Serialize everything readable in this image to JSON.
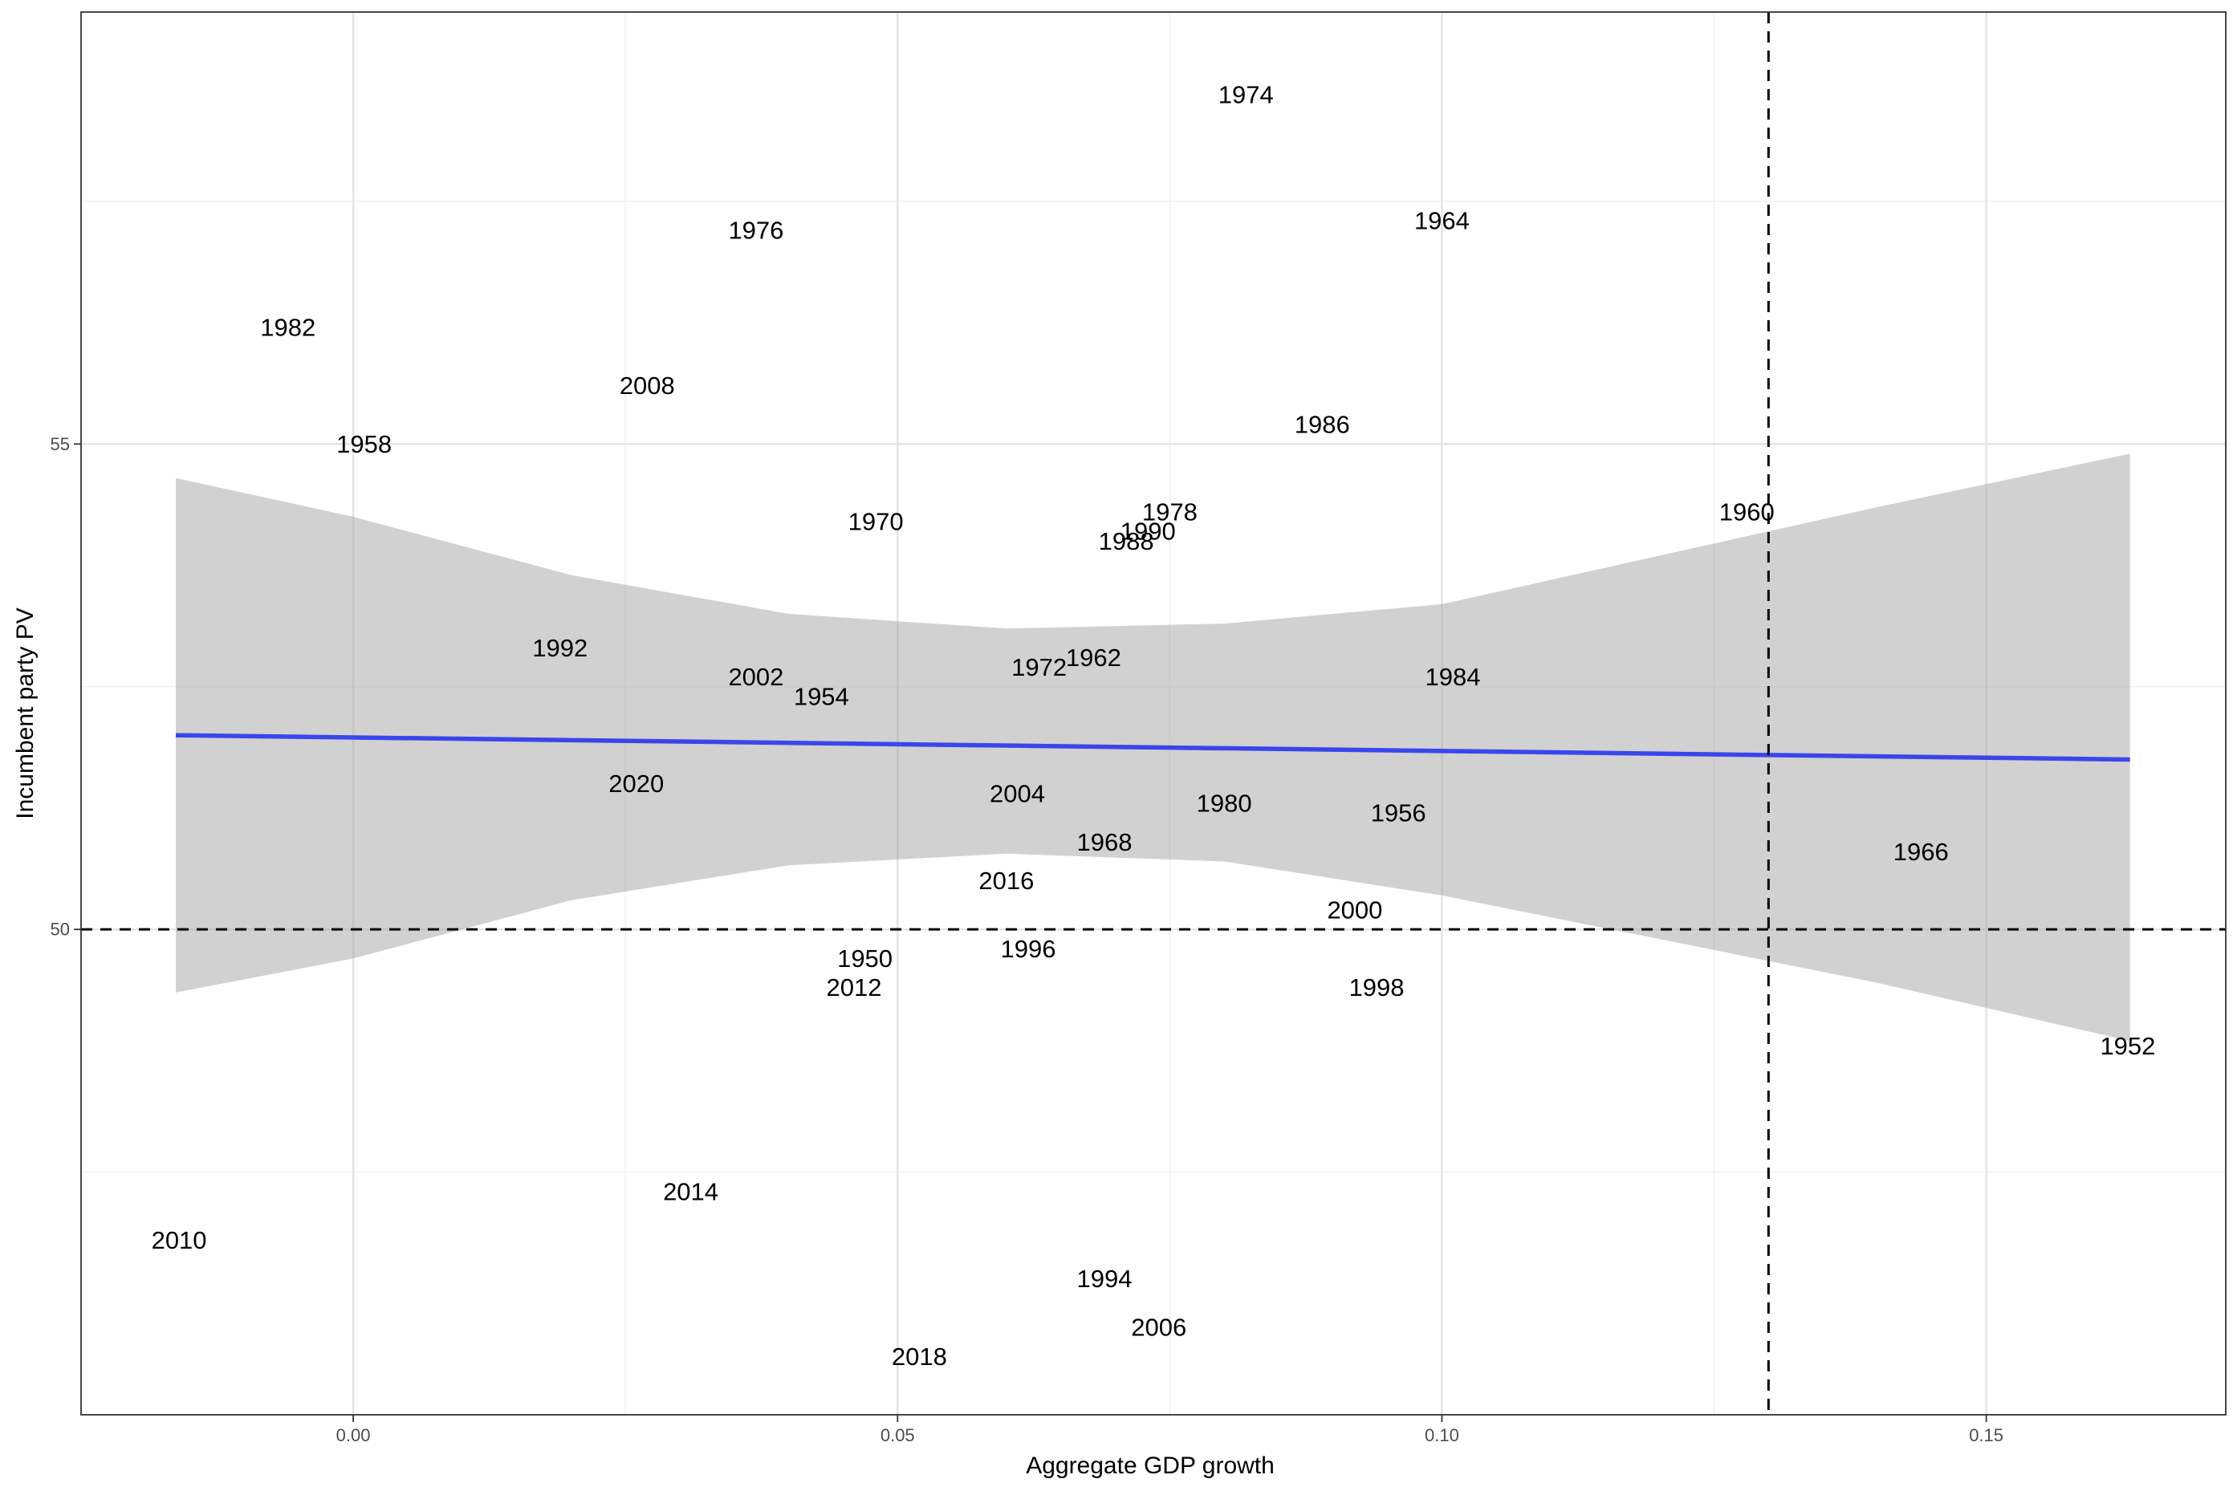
{
  "chart_data": {
    "type": "scatter",
    "xlabel": "Aggregate GDP growth",
    "ylabel": "Incumbent party PV",
    "xlim": [
      -0.025,
      0.172
    ],
    "ylim": [
      45.0,
      59.45
    ],
    "x_ticks": [
      0.0,
      0.05,
      0.1,
      0.15
    ],
    "x_tick_labels": [
      "0.00",
      "0.05",
      "0.10",
      "0.15"
    ],
    "y_ticks": [
      50,
      55
    ],
    "y_tick_labels": [
      "50",
      "55"
    ],
    "grid": true,
    "points": [
      {
        "label": "1950",
        "x": 0.047,
        "y": 49.7
      },
      {
        "label": "1952",
        "x": 0.163,
        "y": 48.8
      },
      {
        "label": "1954",
        "x": 0.043,
        "y": 52.4
      },
      {
        "label": "1956",
        "x": 0.096,
        "y": 51.2
      },
      {
        "label": "1958",
        "x": 0.001,
        "y": 55.0
      },
      {
        "label": "1960",
        "x": 0.128,
        "y": 54.3
      },
      {
        "label": "1962",
        "x": 0.068,
        "y": 52.8
      },
      {
        "label": "1964",
        "x": 0.1,
        "y": 57.3
      },
      {
        "label": "1966",
        "x": 0.144,
        "y": 50.8
      },
      {
        "label": "1968",
        "x": 0.069,
        "y": 50.9
      },
      {
        "label": "1970",
        "x": 0.048,
        "y": 54.2
      },
      {
        "label": "1972",
        "x": 0.063,
        "y": 52.7
      },
      {
        "label": "1974",
        "x": 0.082,
        "y": 58.6
      },
      {
        "label": "1976",
        "x": 0.037,
        "y": 57.2
      },
      {
        "label": "1978",
        "x": 0.075,
        "y": 54.3
      },
      {
        "label": "1980",
        "x": 0.08,
        "y": 51.3
      },
      {
        "label": "1982",
        "x": -0.006,
        "y": 56.2
      },
      {
        "label": "1984",
        "x": 0.101,
        "y": 52.6
      },
      {
        "label": "1986",
        "x": 0.089,
        "y": 55.2
      },
      {
        "label": "1988",
        "x": 0.071,
        "y": 54.0
      },
      {
        "label": "1990",
        "x": 0.073,
        "y": 54.1
      },
      {
        "label": "1992",
        "x": 0.019,
        "y": 52.9
      },
      {
        "label": "1994",
        "x": 0.069,
        "y": 46.4
      },
      {
        "label": "1996",
        "x": 0.062,
        "y": 49.8
      },
      {
        "label": "1998",
        "x": 0.094,
        "y": 49.4
      },
      {
        "label": "2000",
        "x": 0.092,
        "y": 50.2
      },
      {
        "label": "2002",
        "x": 0.037,
        "y": 52.6
      },
      {
        "label": "2004",
        "x": 0.061,
        "y": 51.4
      },
      {
        "label": "2006",
        "x": 0.074,
        "y": 45.9
      },
      {
        "label": "2008",
        "x": 0.027,
        "y": 55.6
      },
      {
        "label": "2010",
        "x": -0.016,
        "y": 46.8
      },
      {
        "label": "2012",
        "x": 0.046,
        "y": 49.4
      },
      {
        "label": "2014",
        "x": 0.031,
        "y": 47.3
      },
      {
        "label": "2016",
        "x": 0.06,
        "y": 50.5
      },
      {
        "label": "2018",
        "x": 0.052,
        "y": 45.6
      },
      {
        "label": "2020",
        "x": 0.026,
        "y": 51.5
      }
    ],
    "fit": {
      "method": "linear",
      "x_range": [
        -0.0163,
        0.1632
      ],
      "y_range": [
        52.0,
        51.75
      ],
      "band_curves": {
        "x": [
          -0.0163,
          0.0,
          0.02,
          0.04,
          0.06,
          0.08,
          0.1,
          0.12,
          0.14,
          0.1632
        ],
        "lower": [
          49.35,
          49.7,
          50.3,
          50.66,
          50.78,
          50.7,
          50.35,
          49.9,
          49.45,
          48.85
        ],
        "upper": [
          54.65,
          54.25,
          53.65,
          53.25,
          53.1,
          53.15,
          53.35,
          53.85,
          54.35,
          54.9
        ]
      }
    },
    "reference_lines": [
      {
        "orientation": "horizontal",
        "value": 50,
        "style": "dashed"
      },
      {
        "orientation": "vertical",
        "value": 0.13,
        "style": "dashed"
      }
    ],
    "colors": {
      "fit_line": "#3a46ec",
      "band": "#999999",
      "points_text": "#000000"
    }
  }
}
